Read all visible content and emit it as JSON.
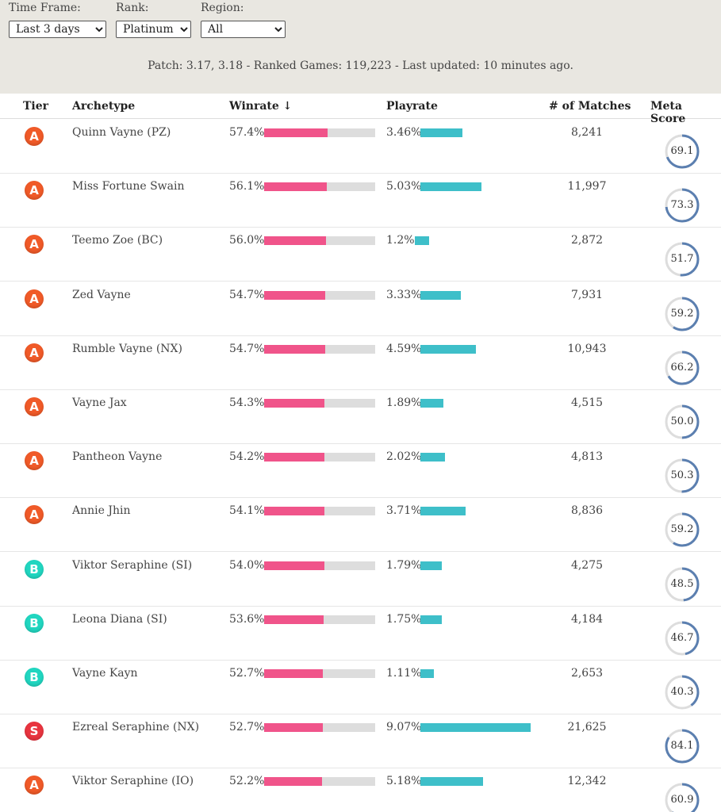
{
  "filters": {
    "time_frame": {
      "label": "Time Frame:",
      "value": "Last 3 days"
    },
    "rank": {
      "label": "Rank:",
      "value": "Platinum+"
    },
    "region": {
      "label": "Region:",
      "value": "All"
    }
  },
  "meta": "Patch: 3.17, 3.18 - Ranked Games: 119,223 - Last updated: 10 minutes ago.",
  "columns": {
    "tier": "Tier",
    "archetype": "Archetype",
    "winrate": "Winrate ↓",
    "playrate": "Playrate",
    "matches": "# of Matches",
    "meta_score": "Meta Score"
  },
  "tier_colors": {
    "A": "#f05a28",
    "B": "#21d6c0",
    "S": "#e8343f"
  },
  "colors": {
    "winrate_bar": "#f0548a",
    "playrate_bar": "#3ebfc9",
    "score_ring": "#5b7fb0"
  },
  "rows": [
    {
      "tier": "A",
      "archetype": "Quinn Vayne (PZ)",
      "winrate": "57.4%",
      "winrate_value": 57.4,
      "playrate": "3.46%",
      "playrate_value": 3.46,
      "matches": "8,241",
      "meta_score": "69.1",
      "meta_score_value": 69.1
    },
    {
      "tier": "A",
      "archetype": "Miss Fortune Swain",
      "winrate": "56.1%",
      "winrate_value": 56.1,
      "playrate": "5.03%",
      "playrate_value": 5.03,
      "matches": "11,997",
      "meta_score": "73.3",
      "meta_score_value": 73.3
    },
    {
      "tier": "A",
      "archetype": "Teemo Zoe (BC)",
      "winrate": "56.0%",
      "winrate_value": 56.0,
      "playrate": "1.2%",
      "playrate_value": 1.2,
      "matches": "2,872",
      "meta_score": "51.7",
      "meta_score_value": 51.7
    },
    {
      "tier": "A",
      "archetype": "Zed Vayne",
      "winrate": "54.7%",
      "winrate_value": 54.7,
      "playrate": "3.33%",
      "playrate_value": 3.33,
      "matches": "7,931",
      "meta_score": "59.2",
      "meta_score_value": 59.2
    },
    {
      "tier": "A",
      "archetype": "Rumble Vayne (NX)",
      "winrate": "54.7%",
      "winrate_value": 54.7,
      "playrate": "4.59%",
      "playrate_value": 4.59,
      "matches": "10,943",
      "meta_score": "66.2",
      "meta_score_value": 66.2
    },
    {
      "tier": "A",
      "archetype": "Vayne Jax",
      "winrate": "54.3%",
      "winrate_value": 54.3,
      "playrate": "1.89%",
      "playrate_value": 1.89,
      "matches": "4,515",
      "meta_score": "50.0",
      "meta_score_value": 50.0
    },
    {
      "tier": "A",
      "archetype": "Pantheon Vayne",
      "winrate": "54.2%",
      "winrate_value": 54.2,
      "playrate": "2.02%",
      "playrate_value": 2.02,
      "matches": "4,813",
      "meta_score": "50.3",
      "meta_score_value": 50.3
    },
    {
      "tier": "A",
      "archetype": "Annie Jhin",
      "winrate": "54.1%",
      "winrate_value": 54.1,
      "playrate": "3.71%",
      "playrate_value": 3.71,
      "matches": "8,836",
      "meta_score": "59.2",
      "meta_score_value": 59.2
    },
    {
      "tier": "B",
      "archetype": "Viktor Seraphine (SI)",
      "winrate": "54.0%",
      "winrate_value": 54.0,
      "playrate": "1.79%",
      "playrate_value": 1.79,
      "matches": "4,275",
      "meta_score": "48.5",
      "meta_score_value": 48.5
    },
    {
      "tier": "B",
      "archetype": "Leona Diana (SI)",
      "winrate": "53.6%",
      "winrate_value": 53.6,
      "playrate": "1.75%",
      "playrate_value": 1.75,
      "matches": "4,184",
      "meta_score": "46.7",
      "meta_score_value": 46.7
    },
    {
      "tier": "B",
      "archetype": "Vayne Kayn",
      "winrate": "52.7%",
      "winrate_value": 52.7,
      "playrate": "1.11%",
      "playrate_value": 1.11,
      "matches": "2,653",
      "meta_score": "40.3",
      "meta_score_value": 40.3
    },
    {
      "tier": "S",
      "archetype": "Ezreal Seraphine (NX)",
      "winrate": "52.7%",
      "winrate_value": 52.7,
      "playrate": "9.07%",
      "playrate_value": 9.07,
      "matches": "21,625",
      "meta_score": "84.1",
      "meta_score_value": 84.1
    },
    {
      "tier": "A",
      "archetype": "Viktor Seraphine (IO)",
      "winrate": "52.2%",
      "winrate_value": 52.2,
      "playrate": "5.18%",
      "playrate_value": 5.18,
      "matches": "12,342",
      "meta_score": "60.9",
      "meta_score_value": 60.9
    }
  ]
}
